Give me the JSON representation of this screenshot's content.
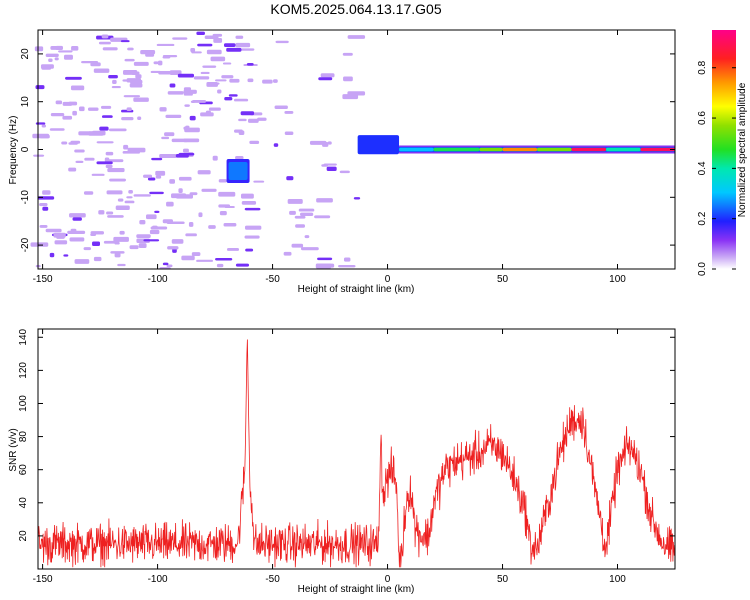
{
  "figure": {
    "title": "KOM5.2025.064.13.17.G05"
  },
  "chart_data": [
    {
      "type": "heatmap",
      "title": "KOM5.2025.064.13.17.G05",
      "xlabel": "Height of straight line (km)",
      "ylabel": "Frequency (Hz)",
      "xlim": [
        -152,
        125
      ],
      "ylim": [
        -25,
        25
      ],
      "xticks": [
        -150,
        -100,
        -50,
        0,
        50,
        100
      ],
      "yticks": [
        -20,
        -10,
        0,
        10,
        20
      ],
      "colorbar": {
        "label": "Normalized spectral amplitude",
        "range": [
          0,
          0.95
        ],
        "ticks": [
          0.0,
          0.2,
          0.4,
          0.6,
          0.8
        ],
        "tick_labels": [
          "0.0",
          "0.2",
          "0.4",
          "0.6",
          "0.8"
        ]
      },
      "features": {
        "noise_region_x": [
          -152,
          -13
        ],
        "noise_gap_x": [
          -57,
          -12
        ],
        "burst": {
          "x": [
            -70,
            -60
          ],
          "y": [
            -7,
            -2
          ],
          "amplitude": 0.25
        },
        "step": {
          "x": [
            -13,
            5
          ],
          "y": [
            -1,
            3
          ],
          "amplitude": 0.2
        },
        "line_frequency": 0,
        "line_segments": [
          {
            "x": [
              5,
              20
            ],
            "amplitude": 0.3
          },
          {
            "x": [
              20,
              40
            ],
            "amplitude": 0.45
          },
          {
            "x": [
              40,
              50
            ],
            "amplitude": 0.55
          },
          {
            "x": [
              50,
              65
            ],
            "amplitude": 0.75
          },
          {
            "x": [
              65,
              80
            ],
            "amplitude": 0.55
          },
          {
            "x": [
              80,
              95
            ],
            "amplitude": 0.9
          },
          {
            "x": [
              95,
              110
            ],
            "amplitude": 0.4
          },
          {
            "x": [
              110,
              125
            ],
            "amplitude": 0.9
          }
        ]
      }
    },
    {
      "type": "line",
      "xlabel": "Height of straight line (km)",
      "ylabel": "SNR (v/v)",
      "xlim": [
        -152,
        125
      ],
      "ylim": [
        0,
        145
      ],
      "xticks": [
        -150,
        -100,
        -50,
        0,
        50,
        100
      ],
      "yticks": [
        20,
        40,
        60,
        80,
        100,
        120,
        140
      ],
      "series": [
        {
          "color": "#ee2020",
          "x": [
            -152,
            -140,
            -130,
            -120,
            -110,
            -100,
            -90,
            -80,
            -70,
            -65,
            -62,
            -61,
            -60,
            -58,
            -50,
            -40,
            -30,
            -20,
            -10,
            -4,
            -3,
            -2,
            0,
            2,
            4,
            5,
            6,
            8,
            10,
            12,
            15,
            18,
            20,
            25,
            30,
            40,
            45,
            50,
            55,
            60,
            62,
            65,
            70,
            75,
            80,
            85,
            90,
            95,
            100,
            105,
            110,
            115,
            120,
            125
          ],
          "y": [
            15,
            15,
            15,
            15,
            15,
            15,
            15,
            15,
            15,
            16,
            60,
            142,
            60,
            15,
            15,
            15,
            15,
            15,
            15,
            15,
            80,
            45,
            55,
            60,
            50,
            5,
            5,
            40,
            50,
            25,
            20,
            20,
            40,
            60,
            65,
            70,
            75,
            70,
            55,
            35,
            15,
            12,
            40,
            70,
            90,
            90,
            50,
            12,
            60,
            75,
            60,
            30,
            15,
            10
          ],
          "jitter": 12
        }
      ]
    }
  ]
}
